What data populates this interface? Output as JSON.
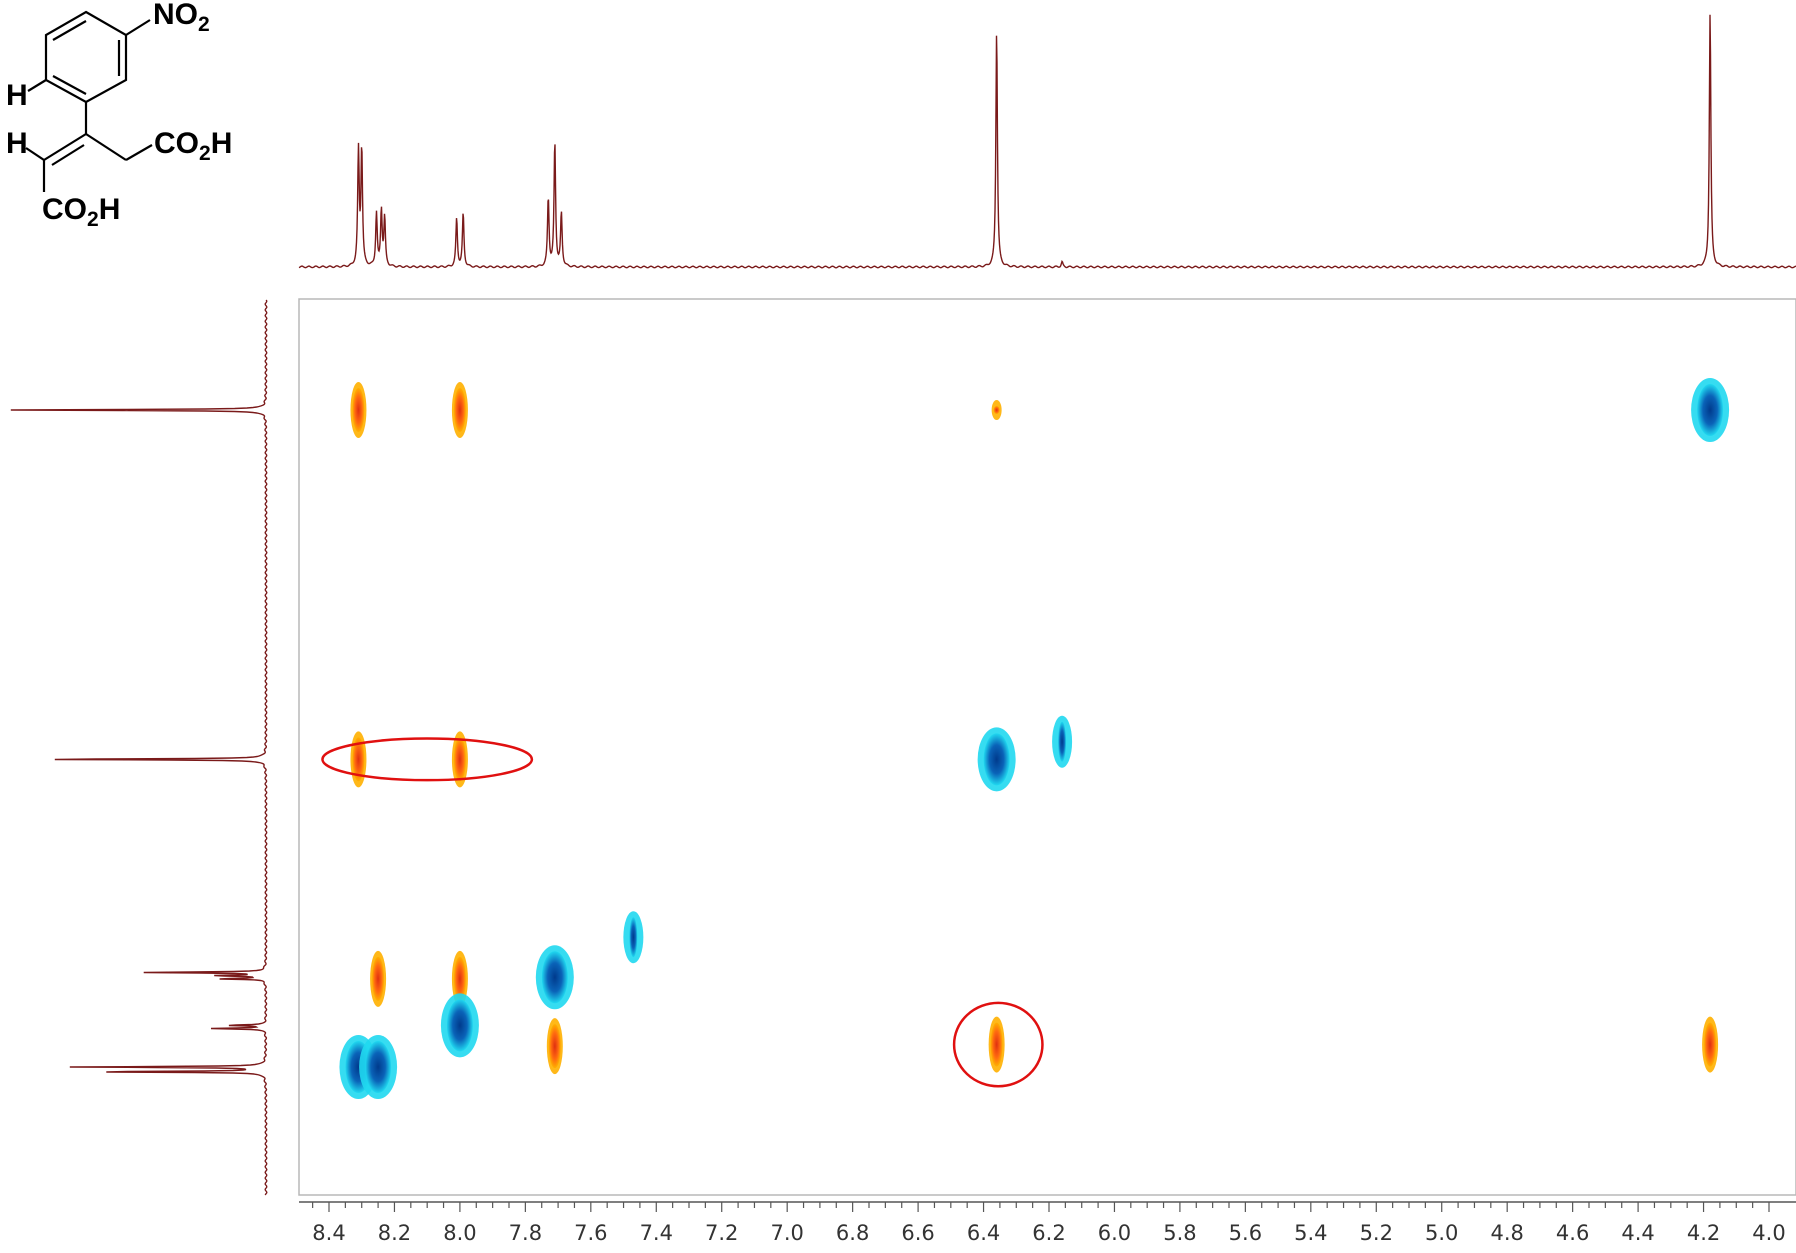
{
  "molecule": {
    "nitro": "NO",
    "nitro_sub": "2",
    "h_aryl": "H",
    "h_vinyl": "H",
    "acid_a": "CO",
    "acid_a_sub": "2",
    "acid_a_end": "H",
    "acid_b": "CO",
    "acid_b_sub": "2",
    "acid_b_end": "H"
  },
  "colors": {
    "trace": "#7a1a1a",
    "frame": "#b8b8b8",
    "pos_core": "#e03010",
    "pos_edge": "#ffb000",
    "neg_core": "#003a8c",
    "neg_edge": "#20d8f0",
    "annotation": "#e01010"
  },
  "chart_data": {
    "type": "heatmap",
    "description_kind": "2D NMR correlation spectrum with 1D projections",
    "x_axis": {
      "label": "",
      "ticks": [
        "8.4",
        "8.2",
        "8.0",
        "7.8",
        "7.6",
        "7.4",
        "7.2",
        "7.0",
        "6.8",
        "6.6",
        "6.4",
        "6.2",
        "6.0",
        "5.8",
        "5.6",
        "5.4",
        "5.2",
        "5.0",
        "4.8",
        "4.6",
        "4.4",
        "4.2",
        "4.0"
      ],
      "range": [
        8.49,
        3.95
      ],
      "reversed": true,
      "minor_step": 0.05
    },
    "y_axis": {
      "label": "",
      "range": [
        8.55,
        3.95
      ],
      "reversed": true
    },
    "top_projection": {
      "peaks": [
        {
          "ppm": 8.31,
          "height": 0.45
        },
        {
          "ppm": 8.3,
          "height": 0.46
        },
        {
          "ppm": 8.255,
          "height": 0.21
        },
        {
          "ppm": 8.24,
          "height": 0.22
        },
        {
          "ppm": 8.23,
          "height": 0.19
        },
        {
          "ppm": 8.01,
          "height": 0.19
        },
        {
          "ppm": 7.99,
          "height": 0.21
        },
        {
          "ppm": 7.73,
          "height": 0.27
        },
        {
          "ppm": 7.71,
          "height": 0.49
        },
        {
          "ppm": 7.69,
          "height": 0.21
        },
        {
          "ppm": 6.36,
          "height": 0.93
        },
        {
          "ppm": 6.16,
          "height": 0.02
        },
        {
          "ppm": 4.18,
          "height": 1.0
        }
      ]
    },
    "left_projection": {
      "peaks": [
        {
          "ppm": 8.31,
          "height": 0.69
        },
        {
          "ppm": 8.28,
          "height": 0.76
        },
        {
          "ppm": 8.04,
          "height": 0.21
        },
        {
          "ppm": 8.02,
          "height": 0.15
        },
        {
          "ppm": 7.73,
          "height": 0.18
        },
        {
          "ppm": 7.71,
          "height": 0.2
        },
        {
          "ppm": 7.69,
          "height": 0.47
        },
        {
          "ppm": 6.36,
          "height": 0.9
        },
        {
          "ppm": 4.18,
          "height": 1.0
        }
      ]
    },
    "cross_peaks": [
      {
        "x": 8.31,
        "y": 4.18,
        "sign": "pos"
      },
      {
        "x": 8.0,
        "y": 4.18,
        "sign": "pos"
      },
      {
        "x": 6.36,
        "y": 4.18,
        "sign": "pos",
        "weak": true
      },
      {
        "x": 4.18,
        "y": 4.18,
        "sign": "neg"
      },
      {
        "x": 8.31,
        "y": 6.36,
        "sign": "pos"
      },
      {
        "x": 8.0,
        "y": 6.36,
        "sign": "pos"
      },
      {
        "x": 6.36,
        "y": 6.36,
        "sign": "neg"
      },
      {
        "x": 6.16,
        "y": 6.25,
        "sign": "neg",
        "weak": true
      },
      {
        "x": 7.47,
        "y": 7.47,
        "sign": "neg",
        "weak": true
      },
      {
        "x": 8.25,
        "y": 7.73,
        "sign": "pos"
      },
      {
        "x": 8.0,
        "y": 7.73,
        "sign": "pos"
      },
      {
        "x": 7.71,
        "y": 7.72,
        "sign": "neg"
      },
      {
        "x": 8.0,
        "y": 8.02,
        "sign": "neg"
      },
      {
        "x": 7.71,
        "y": 8.15,
        "sign": "pos"
      },
      {
        "x": 8.31,
        "y": 8.28,
        "sign": "neg"
      },
      {
        "x": 8.25,
        "y": 8.28,
        "sign": "neg"
      },
      {
        "x": 6.36,
        "y": 8.14,
        "sign": "pos"
      },
      {
        "x": 4.18,
        "y": 8.14,
        "sign": "pos"
      }
    ],
    "annotations": [
      {
        "shape": "ellipse",
        "x_range": [
          8.42,
          7.78
        ],
        "y_range": [
          6.23,
          6.49
        ]
      },
      {
        "shape": "ellipse",
        "x_range": [
          6.49,
          6.22
        ],
        "y_range": [
          7.88,
          8.4
        ]
      }
    ]
  }
}
